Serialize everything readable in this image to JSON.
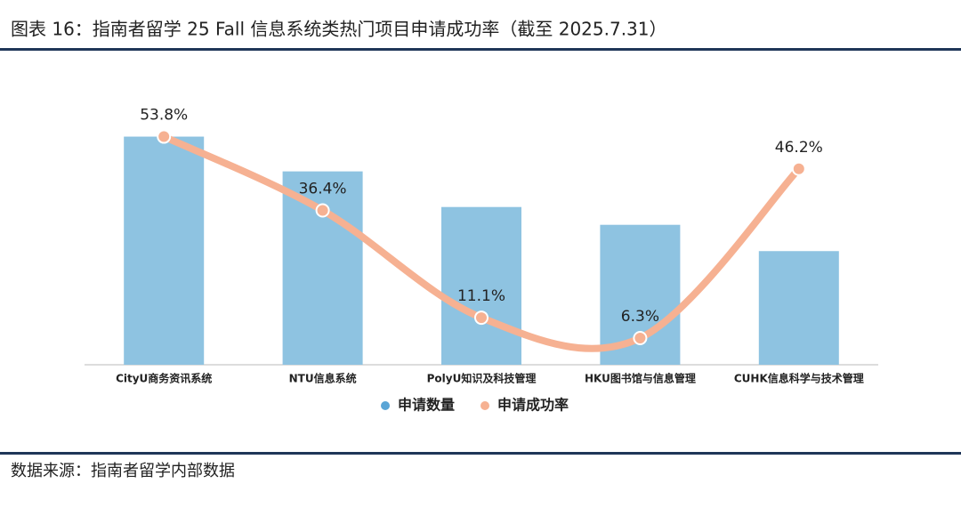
{
  "chart_data": {
    "type": "combo",
    "title": "图表 16：指南者留学 25 Fall 信息系统类热门项目申请成功率（截至 2025.7.31）",
    "source": "数据来源：指南者留学内部数据",
    "categories": [
      "CityU商务资讯系统",
      "NTU信息系统",
      "PolyU知识及科技管理",
      "HKU图书馆与信息管理",
      "CUHK信息科学与技术管理"
    ],
    "ylim": [
      0,
      300
    ],
    "y2lim": [
      0,
      60
    ],
    "series": [
      {
        "name": "申请数量",
        "type": "bar",
        "color": "#8ec3e1",
        "values": [
          269,
          228,
          186,
          165,
          134
        ]
      },
      {
        "name": "申请成功率",
        "type": "line",
        "axis": "y2",
        "color": "#f6b192",
        "values": [
          53.8,
          36.4,
          11.1,
          6.3,
          46.2
        ],
        "value_labels": [
          "53.8%",
          "36.4%",
          "11.1%",
          "6.3%",
          "46.2%"
        ]
      }
    ]
  }
}
